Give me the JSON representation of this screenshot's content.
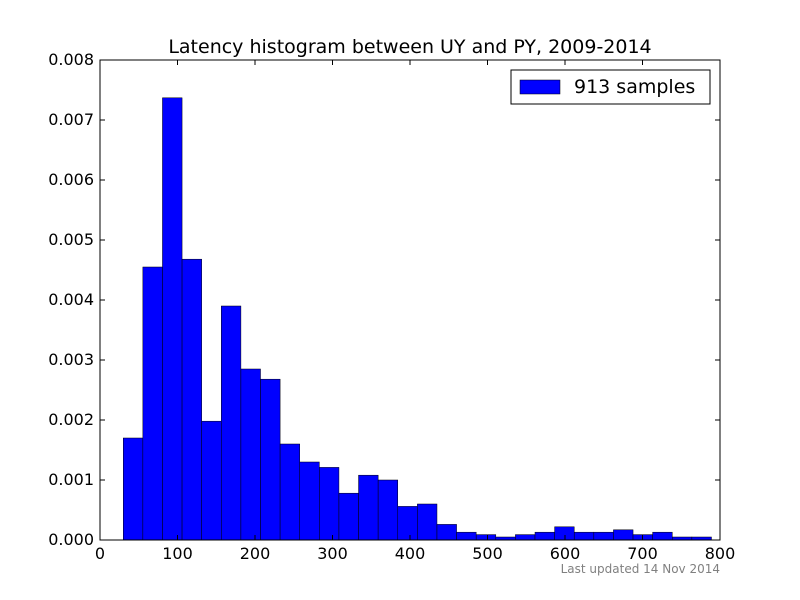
{
  "chart_data": {
    "type": "bar",
    "title": "Latency histogram between UY and PY, 2009-2014",
    "xlabel": "",
    "ylabel": "",
    "xlim": [
      0,
      800
    ],
    "ylim": [
      0,
      0.008
    ],
    "x_ticks": [
      0,
      100,
      200,
      300,
      400,
      500,
      600,
      700,
      800
    ],
    "x_tick_labels": [
      "0",
      "100",
      "200",
      "300",
      "400",
      "500",
      "600",
      "700",
      "800"
    ],
    "y_ticks": [
      0,
      0.001,
      0.002,
      0.003,
      0.004,
      0.005,
      0.006,
      0.007,
      0.008
    ],
    "y_tick_labels": [
      "0.000",
      "0.001",
      "0.002",
      "0.003",
      "0.004",
      "0.005",
      "0.006",
      "0.007",
      "0.008"
    ],
    "grid": false,
    "legend_position": "top-right",
    "series": [
      {
        "name": "913 samples",
        "color": "#0000ff",
        "bin_edges": [
          30,
          55.3,
          80.6,
          105.9,
          131.2,
          156.5,
          181.8,
          207.1,
          232.4,
          257.7,
          283,
          308.3,
          333.6,
          358.9,
          384.2,
          409.5,
          434.8,
          460.1,
          485.4,
          510.7,
          536,
          561.3,
          586.6,
          611.9,
          637.2,
          662.5,
          687.8,
          713.1,
          738.4,
          763.7,
          789
        ],
        "values": [
          0.0017,
          0.00455,
          0.00737,
          0.00468,
          0.00198,
          0.0039,
          0.00285,
          0.00268,
          0.0016,
          0.0013,
          0.00121,
          0.00078,
          0.00108,
          0.001,
          0.00056,
          0.0006,
          0.00026,
          0.00013,
          9e-05,
          5e-05,
          9e-05,
          0.00013,
          0.00022,
          0.00013,
          0.00013,
          0.00017,
          9e-05,
          0.00013,
          5e-05,
          5e-05
        ]
      }
    ]
  },
  "footnote": "Last updated 14 Nov 2014",
  "colors": {
    "bar": "#0000ff",
    "axis": "#000000",
    "footnote": "#808080"
  }
}
